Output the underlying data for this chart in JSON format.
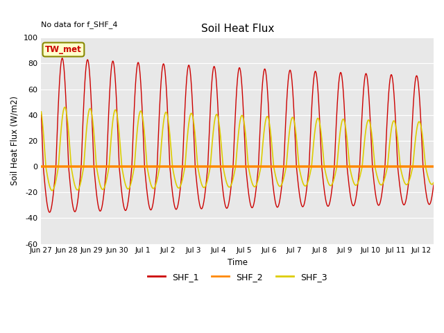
{
  "title": "Soil Heat Flux",
  "no_data_text": "No data for f_SHF_4",
  "ylabel": "Soil Heat Flux (W/m2)",
  "xlabel": "Time",
  "ylim": [
    -60,
    100
  ],
  "bg_color": "#e8e8e8",
  "fig_color": "#ffffff",
  "legend_label": "TW_met",
  "series_colors": {
    "SHF_1": "#cc0000",
    "SHF_2": "#ff8800",
    "SHF_3": "#ddcc00"
  },
  "xtick_labels": [
    "Jun 27",
    "Jun 28",
    "Jun 29",
    "Jun 30",
    "Jul 1",
    "Jul 2",
    "Jul 3",
    "Jul 4",
    "Jul 5",
    "Jul 6",
    "Jul 7",
    "Jul 8",
    "Jul 9",
    "Jul 10",
    "Jul 11",
    "Jul 12"
  ],
  "ytick_vals": [
    -60,
    -40,
    -20,
    0,
    20,
    40,
    60,
    80,
    100
  ],
  "xlim": [
    0,
    15.5
  ],
  "num_ticks": 16
}
